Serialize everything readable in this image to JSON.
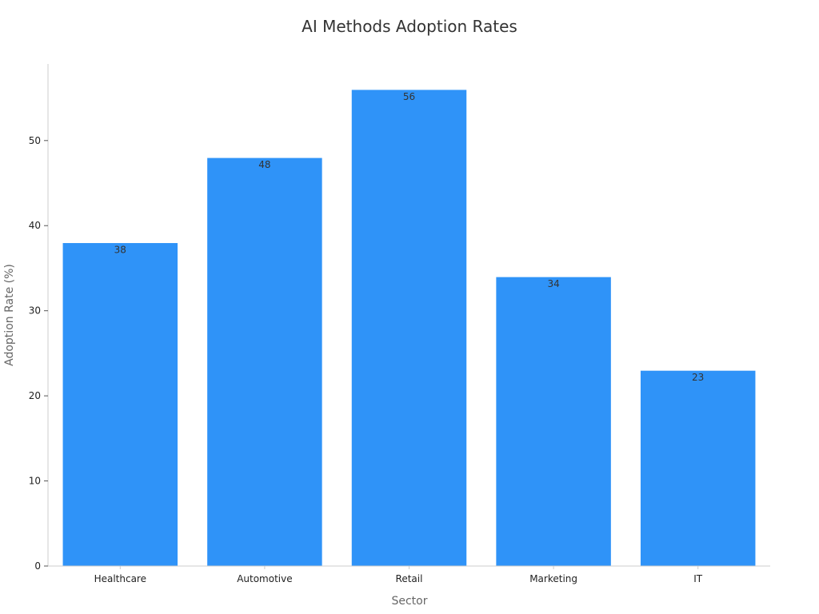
{
  "chart_data": {
    "type": "bar",
    "title": "AI Methods Adoption Rates",
    "xlabel": "Sector",
    "ylabel": "Adoption Rate (%)",
    "categories": [
      "Healthcare",
      "Automotive",
      "Retail",
      "Marketing",
      "IT"
    ],
    "values": [
      38,
      48,
      56,
      34,
      23
    ],
    "ylim": [
      0,
      59
    ],
    "yticks": [
      0,
      10,
      20,
      30,
      40,
      50
    ],
    "grid": false,
    "legend": "none",
    "bar_color": "#2f93f8",
    "axis_color": "#cccccc"
  }
}
